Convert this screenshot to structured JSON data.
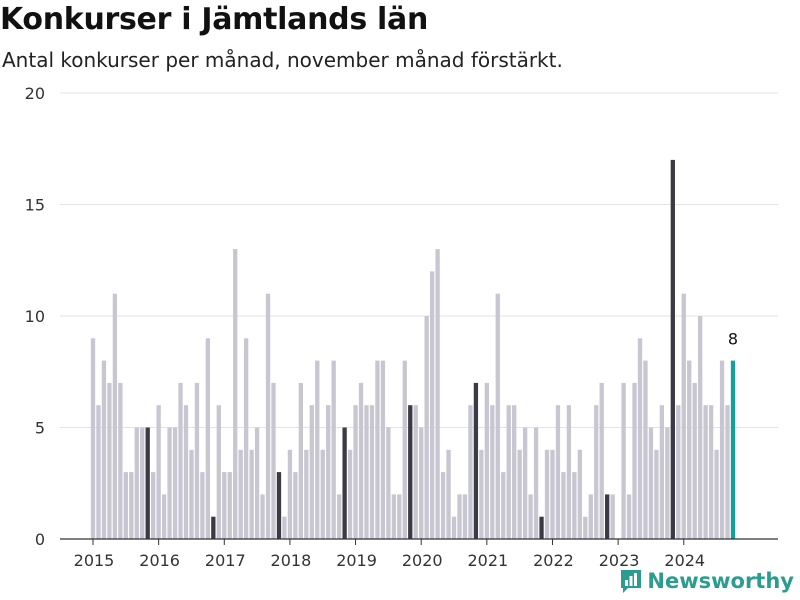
{
  "title": "Konkurser i Jämtlands län",
  "subtitle": "Antal konkurser per månad, november månad förstärkt.",
  "brand": {
    "name": "Newsworthy",
    "color": "#2a9d8f"
  },
  "colors": {
    "bar": "#c7c6d1",
    "highlight": "#3b3b45",
    "latest": "#14a09a",
    "grid": "#e3e3e3",
    "axis": "#333333"
  },
  "chart_data": {
    "type": "bar",
    "ylim": [
      0,
      20
    ],
    "yticks": [
      0,
      5,
      10,
      15,
      20
    ],
    "xticks": [
      "2015",
      "2016",
      "2017",
      "2018",
      "2019",
      "2020",
      "2021",
      "2022",
      "2023",
      "2024"
    ],
    "start_year": 2015,
    "highlight_month": 11,
    "latest_label": "8",
    "values": [
      9,
      6,
      8,
      7,
      11,
      7,
      3,
      3,
      5,
      5,
      5,
      3,
      6,
      2,
      5,
      5,
      7,
      6,
      4,
      7,
      3,
      9,
      1,
      6,
      3,
      3,
      13,
      4,
      9,
      4,
      5,
      2,
      11,
      7,
      3,
      1,
      4,
      3,
      7,
      4,
      6,
      8,
      4,
      6,
      8,
      2,
      5,
      4,
      6,
      7,
      6,
      6,
      8,
      8,
      5,
      2,
      2,
      8,
      6,
      6,
      5,
      10,
      12,
      13,
      3,
      4,
      1,
      2,
      2,
      6,
      7,
      4,
      7,
      6,
      11,
      3,
      6,
      6,
      4,
      5,
      2,
      5,
      1,
      4,
      4,
      6,
      3,
      6,
      3,
      4,
      1,
      2,
      6,
      7,
      2,
      2,
      0,
      7,
      2,
      7,
      9,
      8,
      5,
      4,
      6,
      5,
      17,
      6,
      11,
      8,
      7,
      10,
      6,
      6,
      4,
      8,
      6,
      8
    ]
  }
}
